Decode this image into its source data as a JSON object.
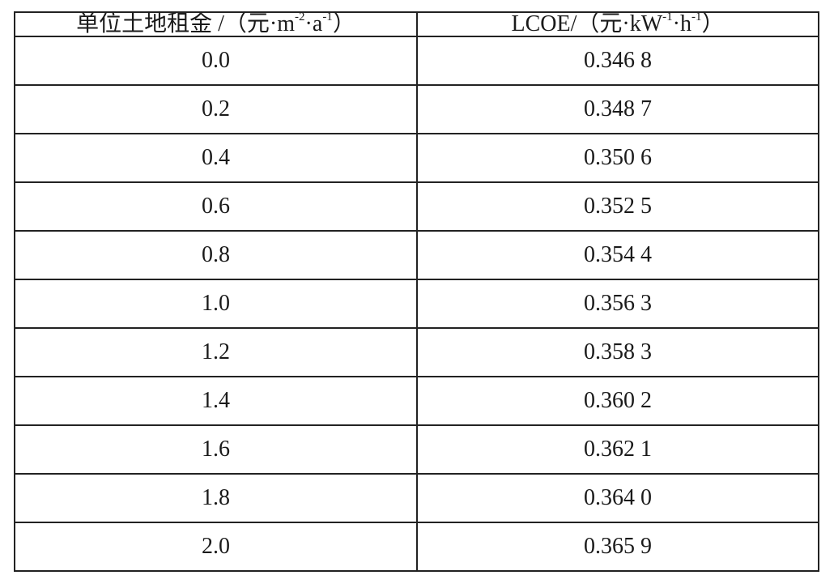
{
  "table": {
    "headers": [
      {
        "label": "单位土地租金 /（元·m",
        "sup1": "-2",
        "mid": "·a",
        "sup2": "-1",
        "end": "）"
      },
      {
        "label": "LCOE/（元·kW",
        "sup1": "-1",
        "mid": "·h",
        "sup2": "-1",
        "end": "）"
      }
    ],
    "rows": [
      [
        "0.0",
        "0.346 8"
      ],
      [
        "0.2",
        "0.348 7"
      ],
      [
        "0.4",
        "0.350 6"
      ],
      [
        "0.6",
        "0.352 5"
      ],
      [
        "0.8",
        "0.354 4"
      ],
      [
        "1.0",
        "0.356 3"
      ],
      [
        "1.2",
        "0.358 3"
      ],
      [
        "1.4",
        "0.360 2"
      ],
      [
        "1.6",
        "0.362 1"
      ],
      [
        "1.8",
        "0.364 0"
      ],
      [
        "2.0",
        "0.365 9"
      ]
    ]
  }
}
